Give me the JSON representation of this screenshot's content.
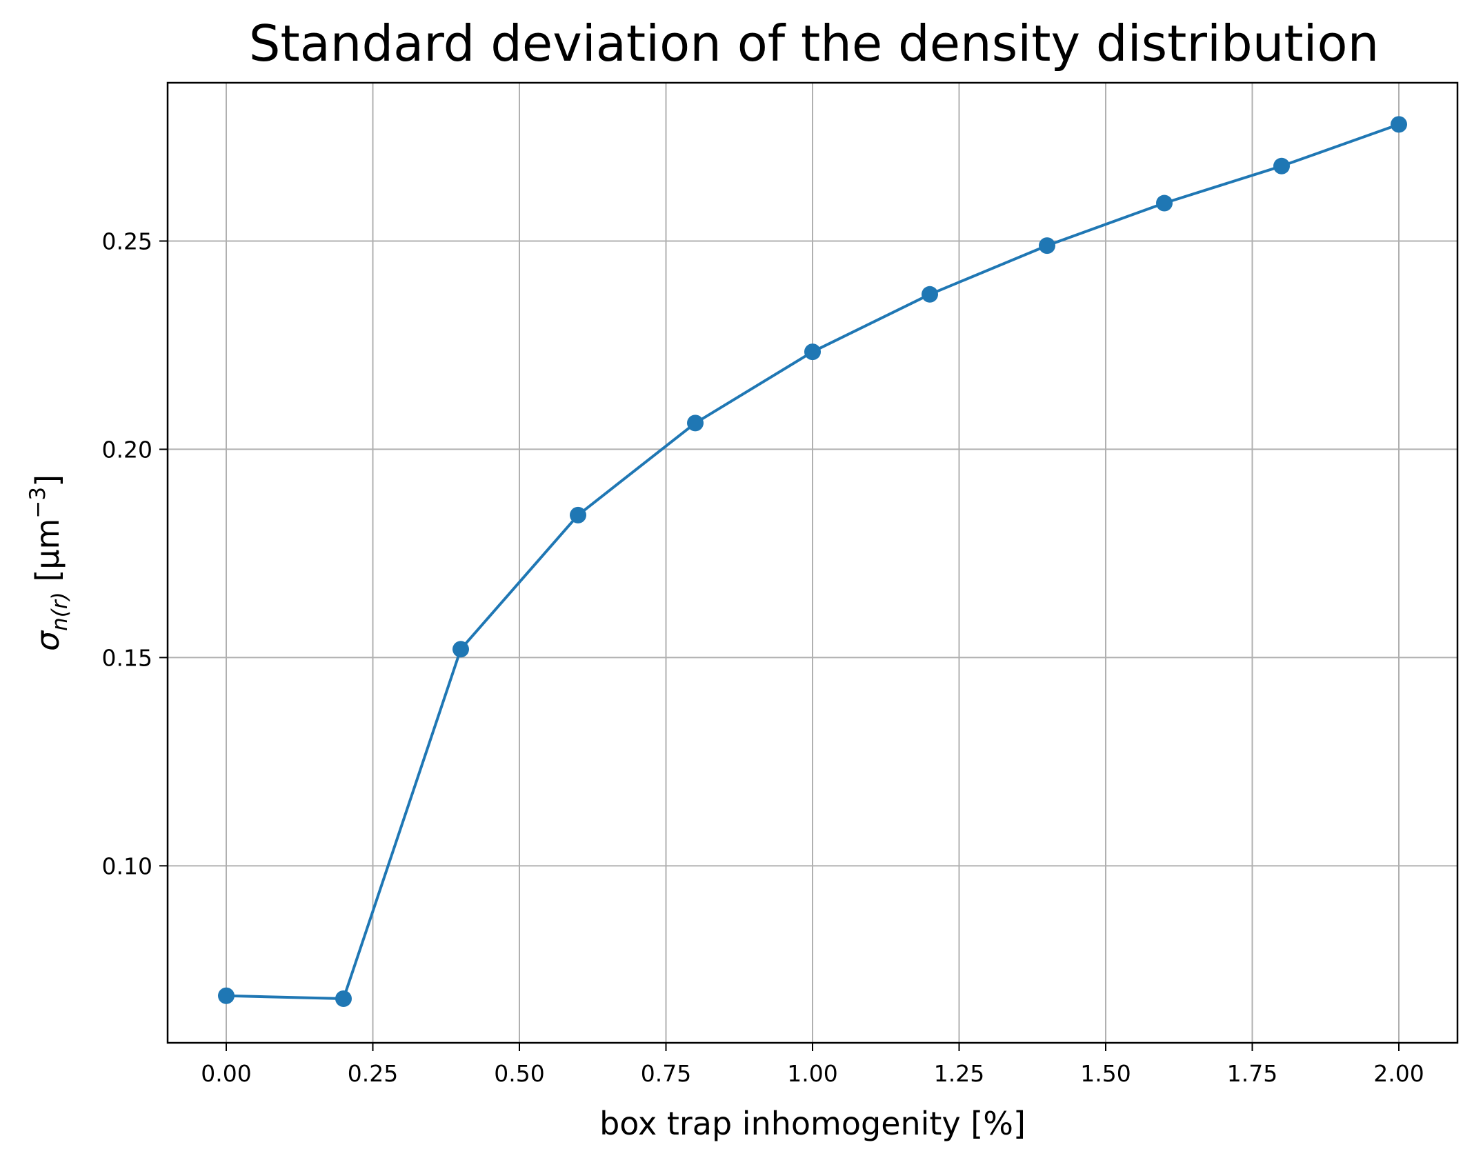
{
  "chart_data": {
    "type": "line",
    "title": "Standard deviation of the density distribution",
    "xlabel": "box trap inhomogenity [%]",
    "ylabel": {
      "symbol": "σ",
      "subscript": "n(r)",
      "unit_open": " [μm",
      "unit_exp": "−3",
      "unit_close": "]"
    },
    "xlim": [
      -0.1,
      2.1
    ],
    "ylim": [
      0.0575,
      0.288
    ],
    "x_ticks": [
      0.0,
      0.25,
      0.5,
      0.75,
      1.0,
      1.25,
      1.5,
      1.75,
      2.0
    ],
    "x_tick_labels": [
      "0.00",
      "0.25",
      "0.50",
      "0.75",
      "1.00",
      "1.25",
      "1.50",
      "1.75",
      "2.00"
    ],
    "y_ticks": [
      0.1,
      0.15,
      0.2,
      0.25
    ],
    "y_tick_labels": [
      "0.10",
      "0.15",
      "0.20",
      "0.25"
    ],
    "grid": true,
    "series": [
      {
        "color": "#1f77b4",
        "marker": "circle",
        "x": [
          0.0,
          0.2,
          0.4,
          0.6,
          0.8,
          1.0,
          1.2,
          1.4,
          1.6,
          1.8,
          2.0
        ],
        "y": [
          0.0688,
          0.0681,
          0.152,
          0.1842,
          0.2063,
          0.2234,
          0.2372,
          0.2489,
          0.2591,
          0.268,
          0.278
        ]
      }
    ]
  }
}
